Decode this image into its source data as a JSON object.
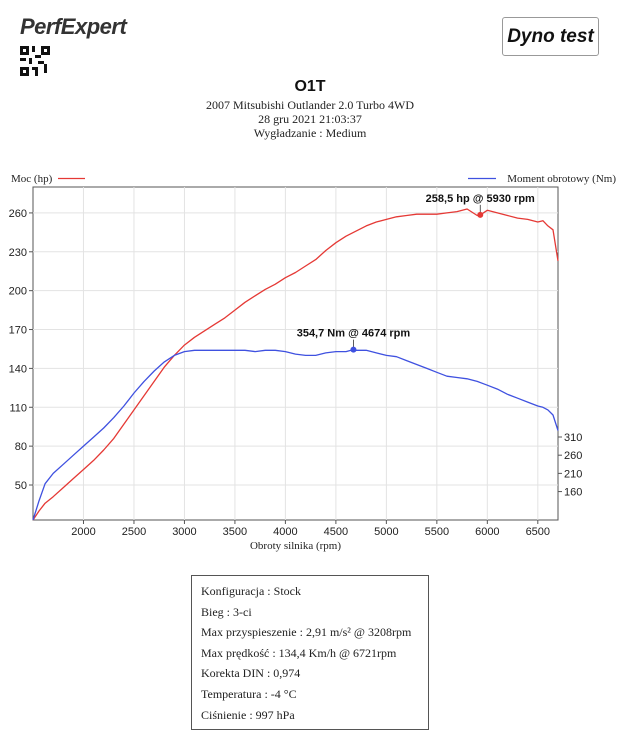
{
  "header": {
    "logo_text": "PerfExpert",
    "badge": "Dyno test",
    "title": "O1T",
    "vehicle": "2007 Mitsubishi Outlander 2.0 Turbo 4WD",
    "datetime": "28 gru 2021 21:03:37",
    "smoothing": "Wygładzanie : Medium"
  },
  "chart_data": {
    "type": "line",
    "xlabel": "Obroty silnika (rpm)",
    "xlim": [
      1500,
      6700
    ],
    "xticks": [
      2000,
      2500,
      3000,
      3500,
      4000,
      4500,
      5000,
      5500,
      6000,
      6500
    ],
    "grid": true,
    "y_left": {
      "label": "Moc (hp)",
      "ylim": [
        23,
        280
      ],
      "ticks": [
        50,
        80,
        110,
        140,
        170,
        200,
        230,
        260
      ]
    },
    "y_right": {
      "label": "Moment obrotowy (Nm)",
      "ticks": [
        160,
        210,
        260,
        310
      ],
      "ref_rpm_for_ticks": 2000
    },
    "series": [
      {
        "name": "Moc (hp)",
        "axis": "left",
        "color": "#e53935",
        "x": [
          1500,
          1560,
          1620,
          1700,
          1800,
          1900,
          2000,
          2100,
          2200,
          2300,
          2400,
          2500,
          2600,
          2700,
          2800,
          2900,
          3000,
          3100,
          3200,
          3300,
          3400,
          3500,
          3600,
          3700,
          3800,
          3900,
          4000,
          4100,
          4200,
          4300,
          4400,
          4500,
          4600,
          4700,
          4800,
          4900,
          5000,
          5100,
          5200,
          5300,
          5400,
          5500,
          5600,
          5700,
          5800,
          5900,
          5930,
          6000,
          6100,
          6200,
          6300,
          6400,
          6500,
          6550,
          6600,
          6650,
          6700
        ],
        "values": [
          23,
          30,
          36,
          41,
          48,
          55,
          62,
          69,
          77,
          86,
          97,
          108,
          119,
          130,
          141,
          150,
          158,
          164,
          169,
          174,
          179,
          185,
          191,
          196,
          201,
          205,
          210,
          214,
          219,
          224,
          231,
          237,
          242,
          246,
          250,
          253,
          255,
          257,
          258,
          259,
          259,
          259,
          260,
          261,
          263,
          258,
          258.5,
          262,
          260,
          258,
          256,
          255,
          253,
          254,
          250,
          247,
          223
        ]
      },
      {
        "name": "Moment obrotowy (Nm)",
        "axis": "left",
        "color": "#3f51e0",
        "x": [
          1500,
          1560,
          1620,
          1700,
          1800,
          1900,
          2000,
          2100,
          2200,
          2300,
          2400,
          2500,
          2600,
          2700,
          2800,
          2900,
          3000,
          3100,
          3200,
          3300,
          3400,
          3500,
          3600,
          3700,
          3800,
          3900,
          4000,
          4100,
          4200,
          4300,
          4400,
          4500,
          4600,
          4674,
          4700,
          4800,
          4900,
          5000,
          5100,
          5200,
          5300,
          5400,
          5500,
          5600,
          5700,
          5800,
          5900,
          6000,
          6100,
          6200,
          6300,
          6400,
          6500,
          6550,
          6600,
          6650,
          6700
        ],
        "values": [
          23,
          38,
          51,
          59,
          66,
          73,
          80,
          87,
          94,
          102,
          111,
          121,
          130,
          138,
          145,
          150,
          153,
          154,
          154,
          154,
          154,
          154,
          154,
          153,
          154,
          154,
          153,
          151,
          150,
          150,
          152,
          153,
          153,
          154.5,
          154,
          154,
          152,
          150,
          149,
          146,
          143,
          140,
          137,
          134,
          133,
          132,
          130,
          127,
          124,
          120,
          117,
          114,
          111,
          110,
          108,
          104,
          92
        ]
      }
    ],
    "annotations": [
      {
        "text": "258,5 hp @ 5930 rpm",
        "series": 0,
        "x": 5930,
        "y": 258.5
      },
      {
        "text": "354,7 Nm @ 4674 rpm",
        "series": 1,
        "x": 4674,
        "y": 154.5
      }
    ]
  },
  "info": [
    "Konfiguracja : Stock",
    "Bieg : 3-ci",
    "Max przyspieszenie : 2,91 m/s² @ 3208rpm",
    "Max prędkość : 134,4 Km/h @ 6721rpm",
    "Korekta DIN : 0,974",
    "Temperatura : -4 °C",
    "Ciśnienie : 997 hPa"
  ]
}
